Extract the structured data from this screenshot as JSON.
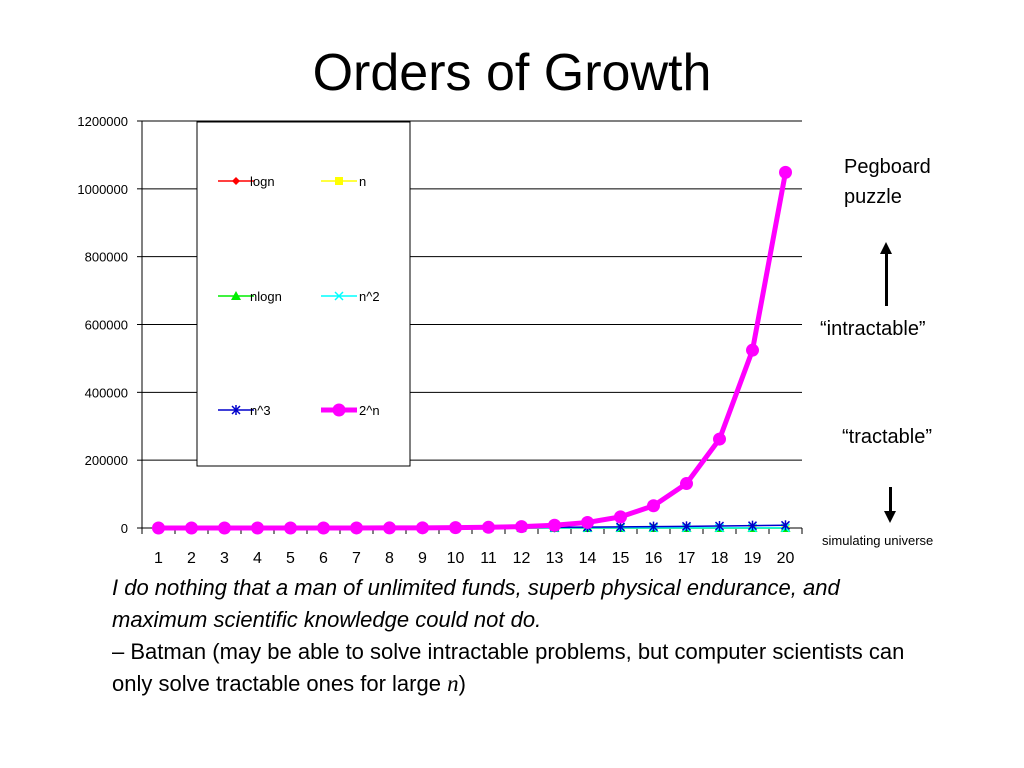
{
  "slide": {
    "title": "Orders of Growth",
    "annotations": {
      "pegboard": "Pegboard puzzle",
      "intractable": "“intractable”",
      "tractable": "“tractable”",
      "simulating": "simulating universe"
    },
    "quote": {
      "text": "I do nothing that a man of unlimited funds, superb physical endurance, and maximum scientific knowledge could not do.",
      "attribution": "– Batman (may be able to solve intractable problems, but computer scientists can only solve tractable ones for large ",
      "var": "n",
      "close": ")"
    }
  },
  "chart_data": {
    "type": "line",
    "categories": [
      "1",
      "2",
      "3",
      "4",
      "5",
      "6",
      "7",
      "8",
      "9",
      "10",
      "11",
      "12",
      "13",
      "14",
      "15",
      "16",
      "17",
      "18",
      "19",
      "20"
    ],
    "ylim": [
      0,
      1200000
    ],
    "yticks": [
      {
        "value": 0,
        "label": "0"
      },
      {
        "value": 200000,
        "label": "200000"
      },
      {
        "value": 400000,
        "label": "400000"
      },
      {
        "value": 600000,
        "label": "600000"
      },
      {
        "value": 800000,
        "label": "800000"
      },
      {
        "value": 1000000,
        "label": "1000000"
      },
      {
        "value": 1200000,
        "label": "1200000"
      }
    ],
    "grid": true,
    "legend_position": "top-left",
    "series": [
      {
        "name": "logn",
        "color": "#ff0000",
        "marker": "diamond",
        "values": [
          0,
          1,
          1.585,
          2,
          2.322,
          2.585,
          2.807,
          3,
          3.17,
          3.322,
          3.459,
          3.585,
          3.7,
          3.807,
          3.907,
          4,
          4.087,
          4.17,
          4.248,
          4.322
        ]
      },
      {
        "name": "n",
        "color": "#ffff00",
        "marker": "square",
        "values": [
          1,
          2,
          3,
          4,
          5,
          6,
          7,
          8,
          9,
          10,
          11,
          12,
          13,
          14,
          15,
          16,
          17,
          18,
          19,
          20
        ]
      },
      {
        "name": "nlogn",
        "color": "#00ee00",
        "marker": "triangle",
        "values": [
          0,
          2,
          4.75,
          8,
          11.6,
          15.5,
          19.7,
          24,
          28.5,
          33.2,
          38.1,
          43,
          48.1,
          53.3,
          58.6,
          64,
          69.5,
          75.1,
          80.7,
          86.4
        ]
      },
      {
        "name": "n^2",
        "color": "#00ffff",
        "marker": "x",
        "values": [
          1,
          4,
          9,
          16,
          25,
          36,
          49,
          64,
          81,
          100,
          121,
          144,
          169,
          196,
          225,
          256,
          289,
          324,
          361,
          400
        ]
      },
      {
        "name": "n^3",
        "color": "#0000cc",
        "marker": "star",
        "values": [
          1,
          8,
          27,
          64,
          125,
          216,
          343,
          512,
          729,
          1000,
          1331,
          1728,
          2197,
          2744,
          3375,
          4096,
          4913,
          5832,
          6859,
          8000
        ]
      },
      {
        "name": "2^n",
        "color": "#ff00ff",
        "marker": "circle",
        "values": [
          2,
          4,
          8,
          16,
          32,
          64,
          128,
          256,
          512,
          1024,
          2048,
          4096,
          8192,
          16384,
          32768,
          65536,
          131072,
          262144,
          524288,
          1048576
        ]
      }
    ]
  }
}
